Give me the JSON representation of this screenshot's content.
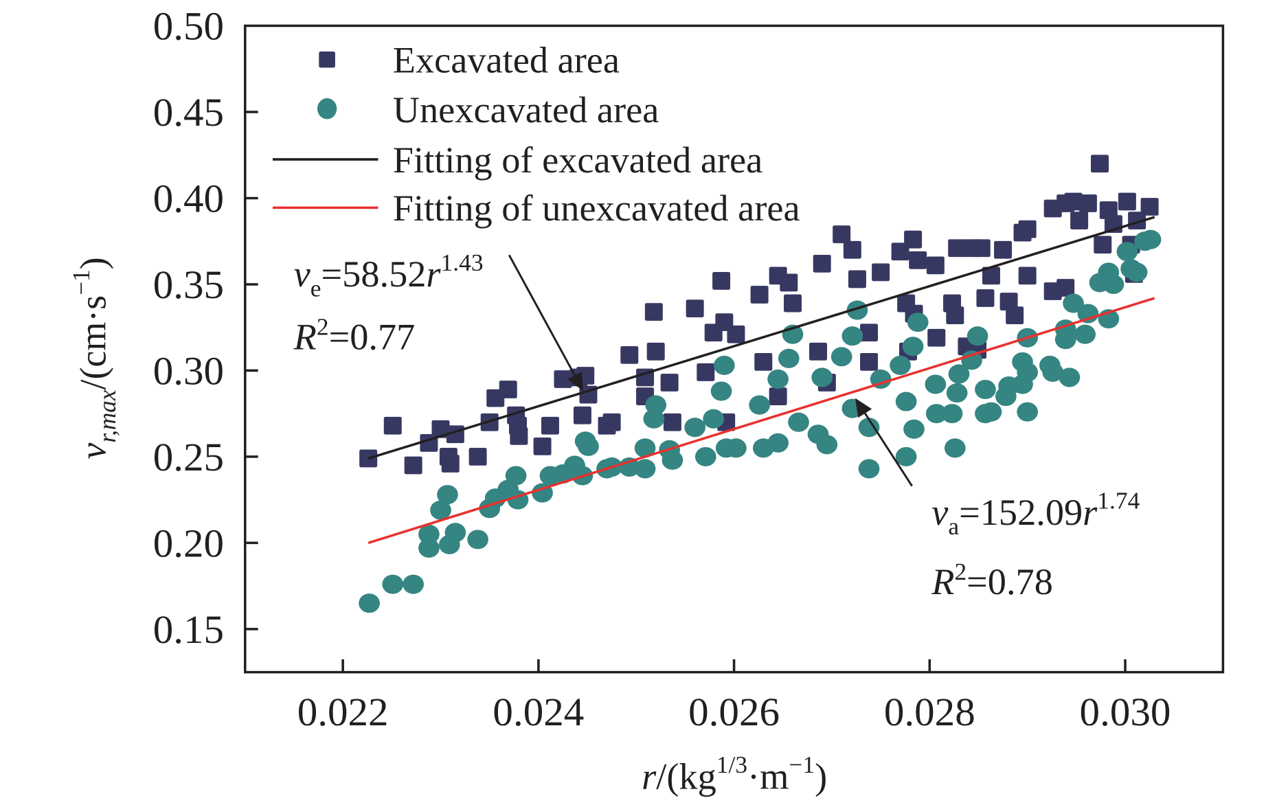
{
  "chart_data": {
    "type": "scatter",
    "title": "",
    "xlabel": {
      "main": "r",
      "unit_prefix": "/(kg",
      "sup1": "1/3",
      "mid": "·m",
      "sup2": "−1",
      "close": ")"
    },
    "ylabel": {
      "main": "v",
      "sub": "r,max",
      "unit_prefix": "/(cm·s",
      "sup": "−1",
      "close": ")"
    },
    "xlim": [
      0.021,
      0.031
    ],
    "ylim": [
      0.125,
      0.5
    ],
    "xticks": [
      0.022,
      0.024,
      0.026,
      0.028,
      0.03
    ],
    "xtick_labels": [
      "0.022",
      "0.024",
      "0.026",
      "0.028",
      "0.030"
    ],
    "yticks": [
      0.15,
      0.2,
      0.25,
      0.3,
      0.35,
      0.4,
      0.45,
      0.5
    ],
    "ytick_labels": [
      "0.15",
      "0.20",
      "0.25",
      "0.30",
      "0.35",
      "0.40",
      "0.45",
      "0.50"
    ],
    "grid": false,
    "legend_position": "top-left",
    "colors": {
      "excavated": "#373862",
      "unexcavated": "#358582",
      "fit_excavated": "#231f20",
      "fit_unexcavated": "#e8302f",
      "axis": "#231f20"
    },
    "legend": [
      {
        "label": "Excavated area",
        "marker": "square"
      },
      {
        "label": "Unexcavated area",
        "marker": "circle"
      },
      {
        "label": "Fitting of excavated area",
        "marker": "line-black"
      },
      {
        "label": "Fitting of unexcavated area",
        "marker": "line-red"
      }
    ],
    "series": [
      {
        "name": "Excavated area",
        "marker": "square",
        "points": [
          [
            0.02226,
            0.249
          ],
          [
            0.02251,
            0.268
          ],
          [
            0.02272,
            0.245
          ],
          [
            0.02288,
            0.258
          ],
          [
            0.023,
            0.266
          ],
          [
            0.02308,
            0.25
          ],
          [
            0.0231,
            0.246
          ],
          [
            0.02315,
            0.263
          ],
          [
            0.02338,
            0.25
          ],
          [
            0.0235,
            0.27
          ],
          [
            0.02356,
            0.284
          ],
          [
            0.02369,
            0.289
          ],
          [
            0.02377,
            0.274
          ],
          [
            0.02379,
            0.268
          ],
          [
            0.0238,
            0.262
          ],
          [
            0.02404,
            0.256
          ],
          [
            0.02412,
            0.268
          ],
          [
            0.02425,
            0.295
          ],
          [
            0.02441,
            0.296
          ],
          [
            0.02448,
            0.297
          ],
          [
            0.02451,
            0.286
          ],
          [
            0.02445,
            0.274
          ],
          [
            0.0247,
            0.268
          ],
          [
            0.02475,
            0.27
          ],
          [
            0.02493,
            0.309
          ],
          [
            0.02509,
            0.296
          ],
          [
            0.02509,
            0.285
          ],
          [
            0.02518,
            0.334
          ],
          [
            0.0252,
            0.311
          ],
          [
            0.02534,
            0.293
          ],
          [
            0.02537,
            0.27
          ],
          [
            0.0256,
            0.336
          ],
          [
            0.02571,
            0.299
          ],
          [
            0.02579,
            0.322
          ],
          [
            0.02587,
            0.352
          ],
          [
            0.0259,
            0.328
          ],
          [
            0.02602,
            0.321
          ],
          [
            0.02592,
            0.27
          ],
          [
            0.02626,
            0.344
          ],
          [
            0.0263,
            0.305
          ],
          [
            0.02645,
            0.285
          ],
          [
            0.02645,
            0.355
          ],
          [
            0.02656,
            0.351
          ],
          [
            0.0266,
            0.339
          ],
          [
            0.02686,
            0.311
          ],
          [
            0.0269,
            0.362
          ],
          [
            0.02695,
            0.293
          ],
          [
            0.0271,
            0.379
          ],
          [
            0.02721,
            0.37
          ],
          [
            0.02726,
            0.353
          ],
          [
            0.02738,
            0.322
          ],
          [
            0.02738,
            0.305
          ],
          [
            0.0275,
            0.357
          ],
          [
            0.0277,
            0.369
          ],
          [
            0.02776,
            0.339
          ],
          [
            0.02783,
            0.376
          ],
          [
            0.02784,
            0.333
          ],
          [
            0.02788,
            0.364
          ],
          [
            0.02778,
            0.311
          ],
          [
            0.02806,
            0.361
          ],
          [
            0.02807,
            0.319
          ],
          [
            0.02823,
            0.339
          ],
          [
            0.02826,
            0.332
          ],
          [
            0.02828,
            0.371
          ],
          [
            0.02843,
            0.371
          ],
          [
            0.02853,
            0.371
          ],
          [
            0.02838,
            0.314
          ],
          [
            0.02849,
            0.312
          ],
          [
            0.02857,
            0.342
          ],
          [
            0.02863,
            0.355
          ],
          [
            0.02875,
            0.37
          ],
          [
            0.02881,
            0.34
          ],
          [
            0.02887,
            0.332
          ],
          [
            0.02895,
            0.38
          ],
          [
            0.029,
            0.382
          ],
          [
            0.029,
            0.355
          ],
          [
            0.02926,
            0.346
          ],
          [
            0.02939,
            0.348
          ],
          [
            0.02926,
            0.394
          ],
          [
            0.02939,
            0.397
          ],
          [
            0.02947,
            0.398
          ],
          [
            0.02953,
            0.387
          ],
          [
            0.02962,
            0.397
          ],
          [
            0.02974,
            0.42
          ],
          [
            0.02977,
            0.373
          ],
          [
            0.02983,
            0.393
          ],
          [
            0.02988,
            0.385
          ],
          [
            0.03002,
            0.398
          ],
          [
            0.03006,
            0.373
          ],
          [
            0.03012,
            0.387
          ],
          [
            0.03025,
            0.395
          ],
          [
            0.03009,
            0.356
          ]
        ]
      },
      {
        "name": "Unexcavated area",
        "marker": "circle",
        "points": [
          [
            0.02227,
            0.165
          ],
          [
            0.02251,
            0.176
          ],
          [
            0.02272,
            0.176
          ],
          [
            0.02288,
            0.205
          ],
          [
            0.02288,
            0.197
          ],
          [
            0.023,
            0.219
          ],
          [
            0.02307,
            0.228
          ],
          [
            0.02309,
            0.199
          ],
          [
            0.02315,
            0.206
          ],
          [
            0.02338,
            0.202
          ],
          [
            0.0235,
            0.22
          ],
          [
            0.02356,
            0.226
          ],
          [
            0.02369,
            0.231
          ],
          [
            0.02377,
            0.239
          ],
          [
            0.02379,
            0.225
          ],
          [
            0.02404,
            0.229
          ],
          [
            0.02412,
            0.239
          ],
          [
            0.02425,
            0.24
          ],
          [
            0.02437,
            0.245
          ],
          [
            0.02445,
            0.239
          ],
          [
            0.02448,
            0.259
          ],
          [
            0.02451,
            0.256
          ],
          [
            0.0247,
            0.243
          ],
          [
            0.02475,
            0.244
          ],
          [
            0.02493,
            0.244
          ],
          [
            0.02509,
            0.243
          ],
          [
            0.02509,
            0.255
          ],
          [
            0.02518,
            0.272
          ],
          [
            0.0252,
            0.28
          ],
          [
            0.02534,
            0.254
          ],
          [
            0.02537,
            0.248
          ],
          [
            0.0256,
            0.267
          ],
          [
            0.02571,
            0.25
          ],
          [
            0.02579,
            0.272
          ],
          [
            0.02587,
            0.288
          ],
          [
            0.0259,
            0.303
          ],
          [
            0.02592,
            0.255
          ],
          [
            0.02602,
            0.255
          ],
          [
            0.02626,
            0.28
          ],
          [
            0.0263,
            0.255
          ],
          [
            0.02645,
            0.295
          ],
          [
            0.02645,
            0.258
          ],
          [
            0.02656,
            0.307
          ],
          [
            0.0266,
            0.321
          ],
          [
            0.02666,
            0.27
          ],
          [
            0.02686,
            0.263
          ],
          [
            0.02695,
            0.257
          ],
          [
            0.0269,
            0.296
          ],
          [
            0.0271,
            0.308
          ],
          [
            0.02721,
            0.278
          ],
          [
            0.02726,
            0.335
          ],
          [
            0.02721,
            0.32
          ],
          [
            0.02738,
            0.267
          ],
          [
            0.02738,
            0.243
          ],
          [
            0.0275,
            0.295
          ],
          [
            0.0277,
            0.303
          ],
          [
            0.02776,
            0.282
          ],
          [
            0.02776,
            0.25
          ],
          [
            0.02784,
            0.266
          ],
          [
            0.02783,
            0.314
          ],
          [
            0.02788,
            0.328
          ],
          [
            0.02806,
            0.292
          ],
          [
            0.02807,
            0.275
          ],
          [
            0.02823,
            0.275
          ],
          [
            0.02826,
            0.255
          ],
          [
            0.02828,
            0.287
          ],
          [
            0.0283,
            0.298
          ],
          [
            0.02843,
            0.306
          ],
          [
            0.02849,
            0.32
          ],
          [
            0.02857,
            0.275
          ],
          [
            0.02857,
            0.289
          ],
          [
            0.02863,
            0.276
          ],
          [
            0.02878,
            0.285
          ],
          [
            0.02881,
            0.291
          ],
          [
            0.02895,
            0.292
          ],
          [
            0.029,
            0.276
          ],
          [
            0.02895,
            0.305
          ],
          [
            0.029,
            0.299
          ],
          [
            0.029,
            0.319
          ],
          [
            0.02923,
            0.303
          ],
          [
            0.02926,
            0.299
          ],
          [
            0.02939,
            0.318
          ],
          [
            0.02939,
            0.324
          ],
          [
            0.02943,
            0.296
          ],
          [
            0.02947,
            0.339
          ],
          [
            0.02959,
            0.321
          ],
          [
            0.02962,
            0.333
          ],
          [
            0.02974,
            0.351
          ],
          [
            0.02983,
            0.33
          ],
          [
            0.02983,
            0.357
          ],
          [
            0.02988,
            0.35
          ],
          [
            0.03002,
            0.369
          ],
          [
            0.03006,
            0.359
          ],
          [
            0.03012,
            0.357
          ],
          [
            0.0302,
            0.375
          ],
          [
            0.03026,
            0.376
          ]
        ]
      }
    ],
    "fits": [
      {
        "name": "Fitting of excavated area",
        "equation_var": "v",
        "equation_sub": "e",
        "equation_coef": "=58.52",
        "equation_base": "r",
        "equation_exp": "1.43",
        "r2_label": "R",
        "r2_sup": "2",
        "r2_value": "=0.77",
        "x_range": [
          0.02226,
          0.0303
        ],
        "y_range": [
          0.249,
          0.389
        ],
        "arrow_from": [
          0.0237,
          0.367
        ],
        "arrow_to": [
          0.02445,
          0.289
        ]
      },
      {
        "name": "Fitting of unexcavated area",
        "equation_var": "v",
        "equation_sub": "a",
        "equation_coef": "=152.09",
        "equation_base": "r",
        "equation_exp": "1.74",
        "r2_label": "R",
        "r2_sup": "2",
        "r2_value": "=0.78",
        "x_range": [
          0.02226,
          0.0303
        ],
        "y_range": [
          0.2,
          0.342
        ],
        "arrow_from": [
          0.02782,
          0.233
        ],
        "arrow_to": [
          0.02725,
          0.283
        ]
      }
    ]
  }
}
